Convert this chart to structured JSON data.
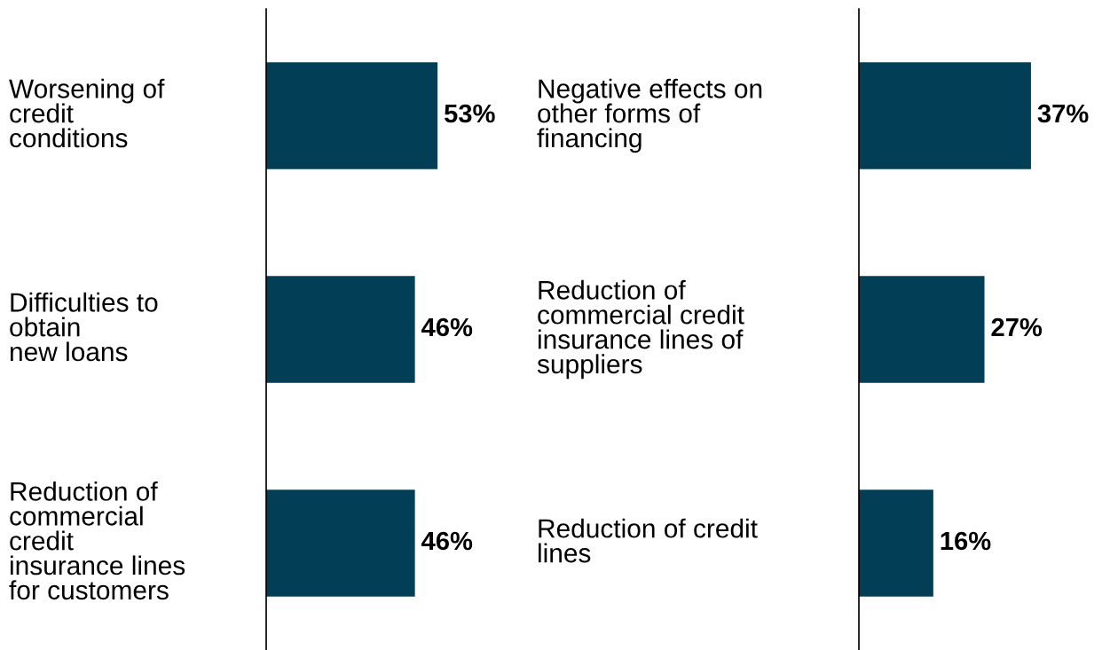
{
  "chart_data": [
    {
      "type": "bar",
      "orientation": "horizontal",
      "categories": [
        "Worsening of\ncredit\nconditions",
        "Difficulties to\nobtain\nnew loans",
        "Reduction of\ncommercial\ncredit\ninsurance lines\nfor customers"
      ],
      "values": [
        53,
        46,
        46
      ],
      "value_labels": [
        "53%",
        "46%",
        "46%"
      ],
      "color": "#023f57"
    },
    {
      "type": "bar",
      "orientation": "horizontal",
      "categories": [
        "Negative effects on\nother forms of\nfinancing",
        "Reduction of\ncommercial credit\ninsurance lines of\nsuppliers",
        "Reduction of credit\nlines"
      ],
      "values": [
        37,
        27,
        16
      ],
      "value_labels": [
        "37%",
        "27%",
        "16%"
      ],
      "color": "#023f57"
    }
  ]
}
